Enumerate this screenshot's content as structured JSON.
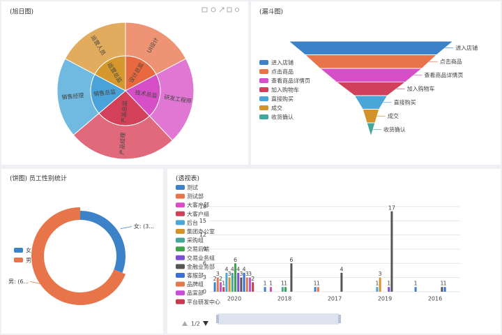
{
  "chart_data": [
    {
      "type": "sunburst",
      "title": "(旭日图)",
      "nodes": [
        {
          "name": "设计总监",
          "color": "#e8693f",
          "value": 10,
          "children": [
            {
              "name": "UI设计",
              "color": "#ee9373",
              "value": 10
            }
          ]
        },
        {
          "name": "技术总监",
          "color": "#d64fc6",
          "value": 12,
          "children": [
            {
              "name": "研发工程师",
              "color": "#df77d3",
              "value": 12
            }
          ]
        },
        {
          "name": "产品总监",
          "color": "#d2405a",
          "value": 15,
          "children": [
            {
              "name": "产品经理",
              "color": "#e06a7c",
              "value": 15
            }
          ]
        },
        {
          "name": "销售总监",
          "color": "#4aa3d8",
          "value": 11,
          "children": [
            {
              "name": "销售经理",
              "color": "#70b9e0",
              "value": 11
            }
          ]
        },
        {
          "name": "运营总监",
          "color": "#d4982e",
          "value": 10,
          "children": [
            {
              "name": "运营人员",
              "color": "#e2ac5f",
              "value": 10
            }
          ]
        }
      ]
    },
    {
      "type": "funnel",
      "title": "(漏斗图)",
      "categories": [
        "进入店铺",
        "点击商品",
        "查看商品详情页",
        "加入购物车",
        "直接购买",
        "成交",
        "收货确认"
      ],
      "values": [
        100,
        80,
        62,
        42,
        20,
        10,
        5
      ],
      "colors": [
        "#3b82c9",
        "#e8744a",
        "#d64fc6",
        "#d0405a",
        "#4aa6d8",
        "#d4922a",
        "#45a79a"
      ]
    },
    {
      "type": "pie",
      "title": "(饼图) 员工性别统计",
      "categories": [
        "女",
        "男"
      ],
      "values": [
        31,
        69
      ],
      "value_labels": [
        "女: (3...",
        "男: (6..."
      ],
      "colors": [
        "#3b82c9",
        "#e8744a"
      ]
    },
    {
      "type": "bar",
      "title": "(透视表)",
      "legend_page": "1/2",
      "categories": [
        "2020",
        "2018",
        "2017",
        "2019",
        "2016"
      ],
      "ylim": [
        0,
        18
      ],
      "yticks": [
        0,
        3,
        6,
        9,
        12,
        15,
        18
      ],
      "grid": true,
      "series": [
        {
          "name": "测试",
          "color": "#3b82c9",
          "values": [
            2,
            1,
            1,
            null,
            1
          ]
        },
        {
          "name": "测试部",
          "color": "#e8744a",
          "values": [
            3,
            null,
            1,
            null,
            null
          ]
        },
        {
          "name": "大客户部",
          "color": "#d64fc6",
          "values": [
            2,
            1,
            null,
            null,
            null
          ]
        },
        {
          "name": "大客户组",
          "color": "#d0405a",
          "values": [
            1,
            null,
            null,
            null,
            null
          ]
        },
        {
          "name": "后台",
          "color": "#4aa6d8",
          "values": [
            4,
            null,
            null,
            1,
            null
          ]
        },
        {
          "name": "集团办公室",
          "color": "#d4922a",
          "values": [
            3,
            null,
            null,
            3,
            null
          ]
        },
        {
          "name": "采购组",
          "color": "#45a79a",
          "values": [
            4,
            1,
            null,
            null,
            null
          ]
        },
        {
          "name": "交易后端",
          "color": "#3fa34d",
          "values": [
            6,
            1,
            null,
            null,
            null
          ]
        },
        {
          "name": "交易业务组",
          "color": "#7b4fd6",
          "values": [
            4,
            null,
            null,
            1,
            null
          ]
        },
        {
          "name": "金融业务部",
          "color": "#555555",
          "values": [
            3,
            6,
            4,
            17,
            1
          ]
        },
        {
          "name": "客服部",
          "color": "#3b6fd0",
          "values": [
            4,
            null,
            null,
            null,
            1
          ]
        },
        {
          "name": "品牌组",
          "color": "#e07a4f",
          "values": [
            3,
            null,
            null,
            null,
            null
          ]
        },
        {
          "name": "品宣部",
          "color": "#c94fd6",
          "values": [
            3,
            null,
            null,
            null,
            null
          ]
        },
        {
          "name": "平台研发中心",
          "color": "#c9384f",
          "values": [
            2,
            null,
            null,
            null,
            null
          ]
        }
      ]
    }
  ]
}
